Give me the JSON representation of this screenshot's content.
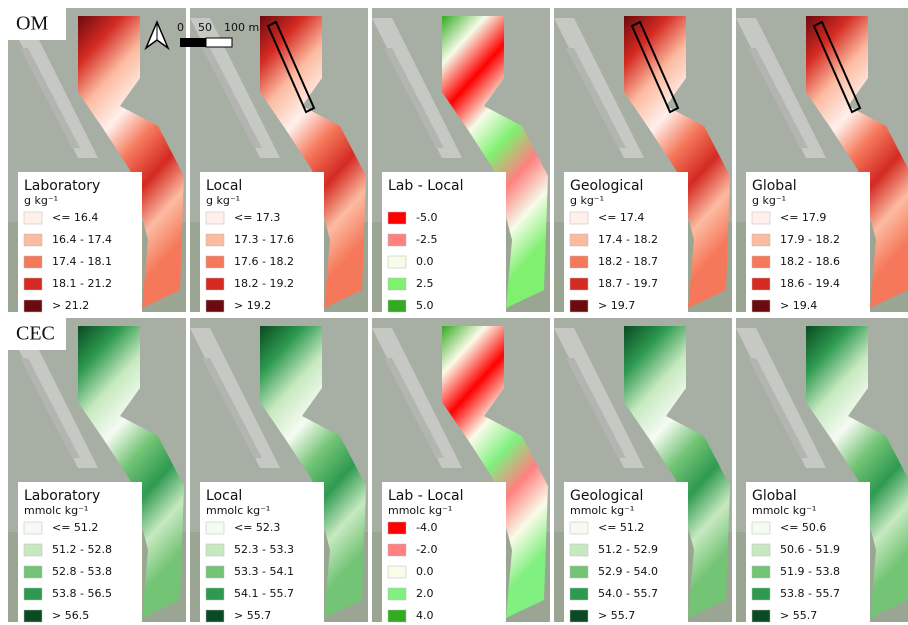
{
  "scale_bar": {
    "ticks": [
      "0",
      "50",
      "100 m"
    ]
  },
  "rows": [
    {
      "label": "OM",
      "panels": [
        {
          "title": "Laboratory",
          "unit": "g kg⁻¹",
          "entries": [
            {
              "label": "<= 16.4",
              "color": "#fff0eb"
            },
            {
              "label": "16.4 - 17.4",
              "color": "#fcbba1"
            },
            {
              "label": "17.4 - 18.1",
              "color": "#f5785a"
            },
            {
              "label": "18.1 - 21.2",
              "color": "#d42a22"
            },
            {
              "label": "> 21.2",
              "color": "#6b0a0f"
            }
          ]
        },
        {
          "title": "Local",
          "unit": "g kg⁻¹",
          "entries": [
            {
              "label": "<= 17.3",
              "color": "#fff0eb"
            },
            {
              "label": "17.3 - 17.6",
              "color": "#fcbba1"
            },
            {
              "label": "17.6 - 18.2",
              "color": "#f5785a"
            },
            {
              "label": "18.2 - 19.2",
              "color": "#d42a22"
            },
            {
              "label": "> 19.2",
              "color": "#6b0a0f"
            }
          ]
        },
        {
          "title": "Lab - Local",
          "unit": "",
          "entries": [
            {
              "label": "-5.0",
              "color": "#ff0000"
            },
            {
              "label": "-2.5",
              "color": "#ff8080"
            },
            {
              "label": "0.0",
              "color": "#f5fce8"
            },
            {
              "label": "2.5",
              "color": "#80f070"
            },
            {
              "label": "5.0",
              "color": "#33aa22"
            }
          ]
        },
        {
          "title": "Geological",
          "unit": "g kg⁻¹",
          "entries": [
            {
              "label": "<= 17.4",
              "color": "#fff0eb"
            },
            {
              "label": "17.4 - 18.2",
              "color": "#fcbba1"
            },
            {
              "label": "18.2 - 18.7",
              "color": "#f5785a"
            },
            {
              "label": "18.7 - 19.7",
              "color": "#d42a22"
            },
            {
              "label": "> 19.7",
              "color": "#6b0a0f"
            }
          ]
        },
        {
          "title": "Global",
          "unit": "g kg⁻¹",
          "entries": [
            {
              "label": "<= 17.9",
              "color": "#fff0eb"
            },
            {
              "label": "17.9 - 18.2",
              "color": "#fcbba1"
            },
            {
              "label": "18.2 - 18.6",
              "color": "#f5785a"
            },
            {
              "label": "18.6 - 19.4",
              "color": "#d42a22"
            },
            {
              "label": "> 19.4",
              "color": "#6b0a0f"
            }
          ]
        }
      ]
    },
    {
      "label": "CEC",
      "panels": [
        {
          "title": "Laboratory",
          "unit": "mmolc kg⁻¹",
          "entries": [
            {
              "label": "<= 51.2",
              "color": "#f5fbf2"
            },
            {
              "label": "51.2 - 52.8",
              "color": "#c7e9c0"
            },
            {
              "label": "52.8 - 53.8",
              "color": "#74c476"
            },
            {
              "label": "53.8 - 56.5",
              "color": "#2e9a50"
            },
            {
              "label": "> 56.5",
              "color": "#0a4a22"
            }
          ]
        },
        {
          "title": "Local",
          "unit": "mmolc kg⁻¹",
          "entries": [
            {
              "label": "<= 52.3",
              "color": "#f5fbf2"
            },
            {
              "label": "52.3 - 53.3",
              "color": "#c7e9c0"
            },
            {
              "label": "53.3 - 54.1",
              "color": "#74c476"
            },
            {
              "label": "54.1 - 55.7",
              "color": "#2e9a50"
            },
            {
              "label": "> 55.7",
              "color": "#0a4a22"
            }
          ]
        },
        {
          "title": "Lab - Local",
          "unit": "mmolc kg⁻¹",
          "entries": [
            {
              "label": "-4.0",
              "color": "#ff0000"
            },
            {
              "label": "-2.0",
              "color": "#ff8080"
            },
            {
              "label": "0.0",
              "color": "#fafbe8"
            },
            {
              "label": "2.0",
              "color": "#80f080"
            },
            {
              "label": "4.0",
              "color": "#33aa22"
            }
          ]
        },
        {
          "title": "Geological",
          "unit": "mmolc kg⁻¹",
          "entries": [
            {
              "label": "<= 51.2",
              "color": "#f5fbf2"
            },
            {
              "label": "51.2 - 52.9",
              "color": "#c7e9c0"
            },
            {
              "label": "52.9 - 54.0",
              "color": "#74c476"
            },
            {
              "label": "54.0 - 55.7",
              "color": "#2e9a50"
            },
            {
              "label": "> 55.7",
              "color": "#0a4a22"
            }
          ]
        },
        {
          "title": "Global",
          "unit": "mmolc kg⁻¹",
          "entries": [
            {
              "label": "<= 50.6",
              "color": "#f5fbf2"
            },
            {
              "label": "50.6 - 51.9",
              "color": "#c7e9c0"
            },
            {
              "label": "51.9 - 53.8",
              "color": "#74c476"
            },
            {
              "label": "53.8 - 55.7",
              "color": "#2e9a50"
            },
            {
              "label": "> 55.7",
              "color": "#0a4a22"
            }
          ]
        }
      ]
    }
  ]
}
